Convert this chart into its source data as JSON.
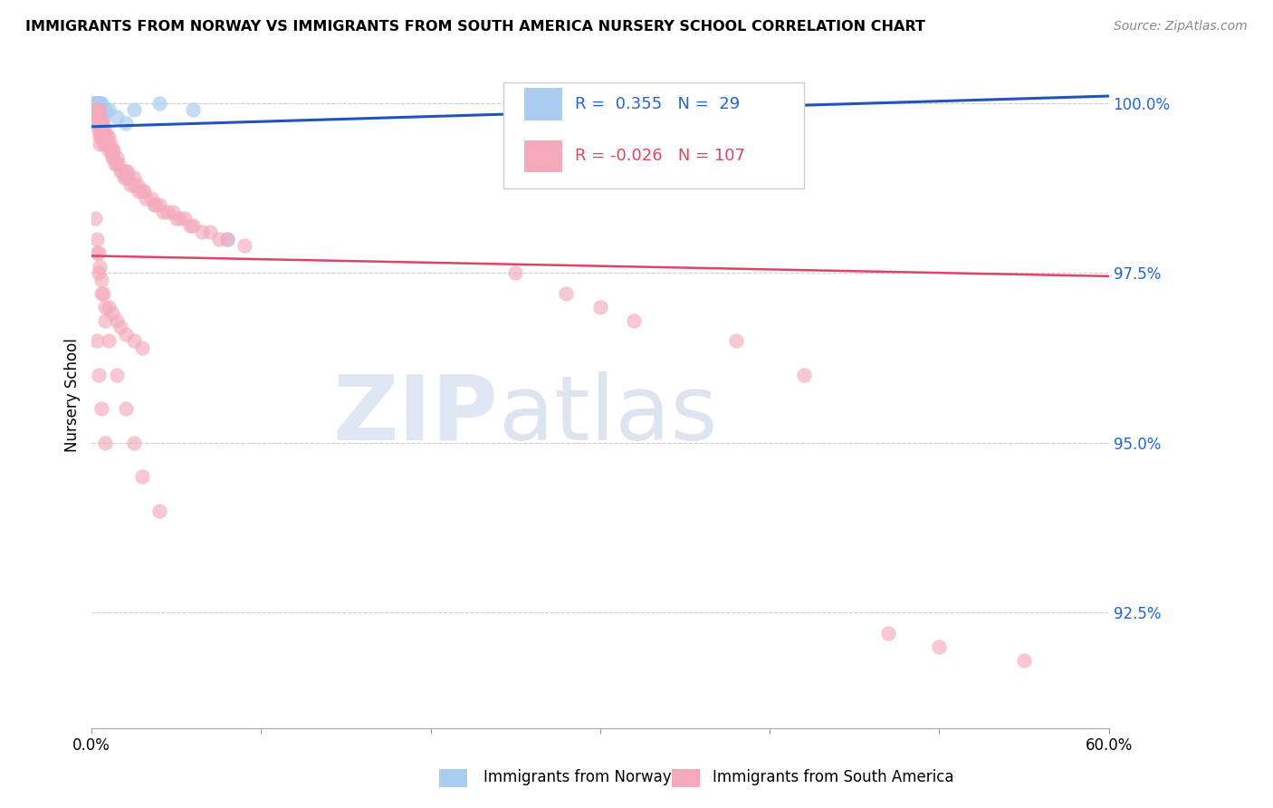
{
  "title": "IMMIGRANTS FROM NORWAY VS IMMIGRANTS FROM SOUTH AMERICA NURSERY SCHOOL CORRELATION CHART",
  "source": "Source: ZipAtlas.com",
  "ylabel": "Nursery School",
  "xlim": [
    0.0,
    0.6
  ],
  "ylim": [
    0.908,
    1.006
  ],
  "yticks": [
    0.925,
    0.95,
    0.975,
    1.0
  ],
  "ytick_labels": [
    "92.5%",
    "95.0%",
    "97.5%",
    "100.0%"
  ],
  "xticks": [
    0.0,
    0.1,
    0.2,
    0.3,
    0.4,
    0.5,
    0.6
  ],
  "xtick_labels": [
    "0.0%",
    "",
    "",
    "",
    "",
    "",
    "60.0%"
  ],
  "r_norway": 0.355,
  "n_norway": 29,
  "r_sa": -0.026,
  "n_sa": 107,
  "norway_color": "#aaccee",
  "sa_color": "#f4aabb",
  "norway_line_color": "#2255bb",
  "sa_line_color": "#dd4466",
  "norway_x": [
    0.001,
    0.001,
    0.002,
    0.002,
    0.002,
    0.002,
    0.002,
    0.003,
    0.003,
    0.003,
    0.003,
    0.004,
    0.004,
    0.004,
    0.004,
    0.005,
    0.005,
    0.005,
    0.005,
    0.006,
    0.007,
    0.008,
    0.01,
    0.015,
    0.02,
    0.025,
    0.04,
    0.06,
    0.08
  ],
  "norway_y": [
    0.999,
    1.0,
    0.999,
    1.0,
    1.0,
    0.999,
    1.0,
    1.0,
    0.999,
    1.0,
    1.0,
    1.0,
    1.0,
    0.999,
    1.0,
    1.0,
    0.999,
    1.0,
    0.999,
    1.0,
    0.998,
    0.999,
    0.999,
    0.998,
    0.997,
    0.999,
    1.0,
    0.999,
    0.98
  ],
  "norway_line_x": [
    0.0,
    0.6
  ],
  "norway_line_y": [
    0.9965,
    1.001
  ],
  "sa_line_x": [
    0.0,
    0.6
  ],
  "sa_line_y": [
    0.9775,
    0.9745
  ],
  "sa_x": [
    0.002,
    0.002,
    0.003,
    0.003,
    0.003,
    0.004,
    0.004,
    0.004,
    0.004,
    0.005,
    0.005,
    0.005,
    0.005,
    0.005,
    0.006,
    0.006,
    0.006,
    0.007,
    0.007,
    0.007,
    0.008,
    0.008,
    0.008,
    0.009,
    0.009,
    0.01,
    0.01,
    0.01,
    0.011,
    0.011,
    0.012,
    0.012,
    0.013,
    0.013,
    0.014,
    0.015,
    0.015,
    0.016,
    0.017,
    0.018,
    0.019,
    0.02,
    0.02,
    0.021,
    0.022,
    0.023,
    0.025,
    0.025,
    0.027,
    0.028,
    0.03,
    0.031,
    0.032,
    0.035,
    0.037,
    0.038,
    0.04,
    0.042,
    0.045,
    0.048,
    0.05,
    0.052,
    0.055,
    0.058,
    0.06,
    0.065,
    0.07,
    0.075,
    0.08,
    0.09,
    0.002,
    0.003,
    0.004,
    0.005,
    0.006,
    0.007,
    0.008,
    0.01,
    0.012,
    0.015,
    0.017,
    0.02,
    0.025,
    0.03,
    0.003,
    0.004,
    0.006,
    0.008,
    0.01,
    0.015,
    0.02,
    0.025,
    0.03,
    0.04,
    0.003,
    0.004,
    0.006,
    0.008,
    0.25,
    0.28,
    0.3,
    0.32,
    0.38,
    0.42,
    0.47,
    0.5,
    0.55
  ],
  "sa_y": [
    0.999,
    0.998,
    0.999,
    0.998,
    0.997,
    0.999,
    0.998,
    0.997,
    0.996,
    0.998,
    0.997,
    0.996,
    0.995,
    0.994,
    0.997,
    0.996,
    0.995,
    0.997,
    0.996,
    0.994,
    0.996,
    0.995,
    0.994,
    0.995,
    0.994,
    0.995,
    0.994,
    0.993,
    0.994,
    0.993,
    0.993,
    0.992,
    0.993,
    0.992,
    0.991,
    0.992,
    0.991,
    0.991,
    0.99,
    0.99,
    0.989,
    0.99,
    0.989,
    0.99,
    0.989,
    0.988,
    0.989,
    0.988,
    0.988,
    0.987,
    0.987,
    0.987,
    0.986,
    0.986,
    0.985,
    0.985,
    0.985,
    0.984,
    0.984,
    0.984,
    0.983,
    0.983,
    0.983,
    0.982,
    0.982,
    0.981,
    0.981,
    0.98,
    0.98,
    0.979,
    0.983,
    0.98,
    0.978,
    0.976,
    0.974,
    0.972,
    0.97,
    0.97,
    0.969,
    0.968,
    0.967,
    0.966,
    0.965,
    0.964,
    0.978,
    0.975,
    0.972,
    0.968,
    0.965,
    0.96,
    0.955,
    0.95,
    0.945,
    0.94,
    0.965,
    0.96,
    0.955,
    0.95,
    0.975,
    0.972,
    0.97,
    0.968,
    0.965,
    0.96,
    0.922,
    0.92,
    0.918
  ]
}
